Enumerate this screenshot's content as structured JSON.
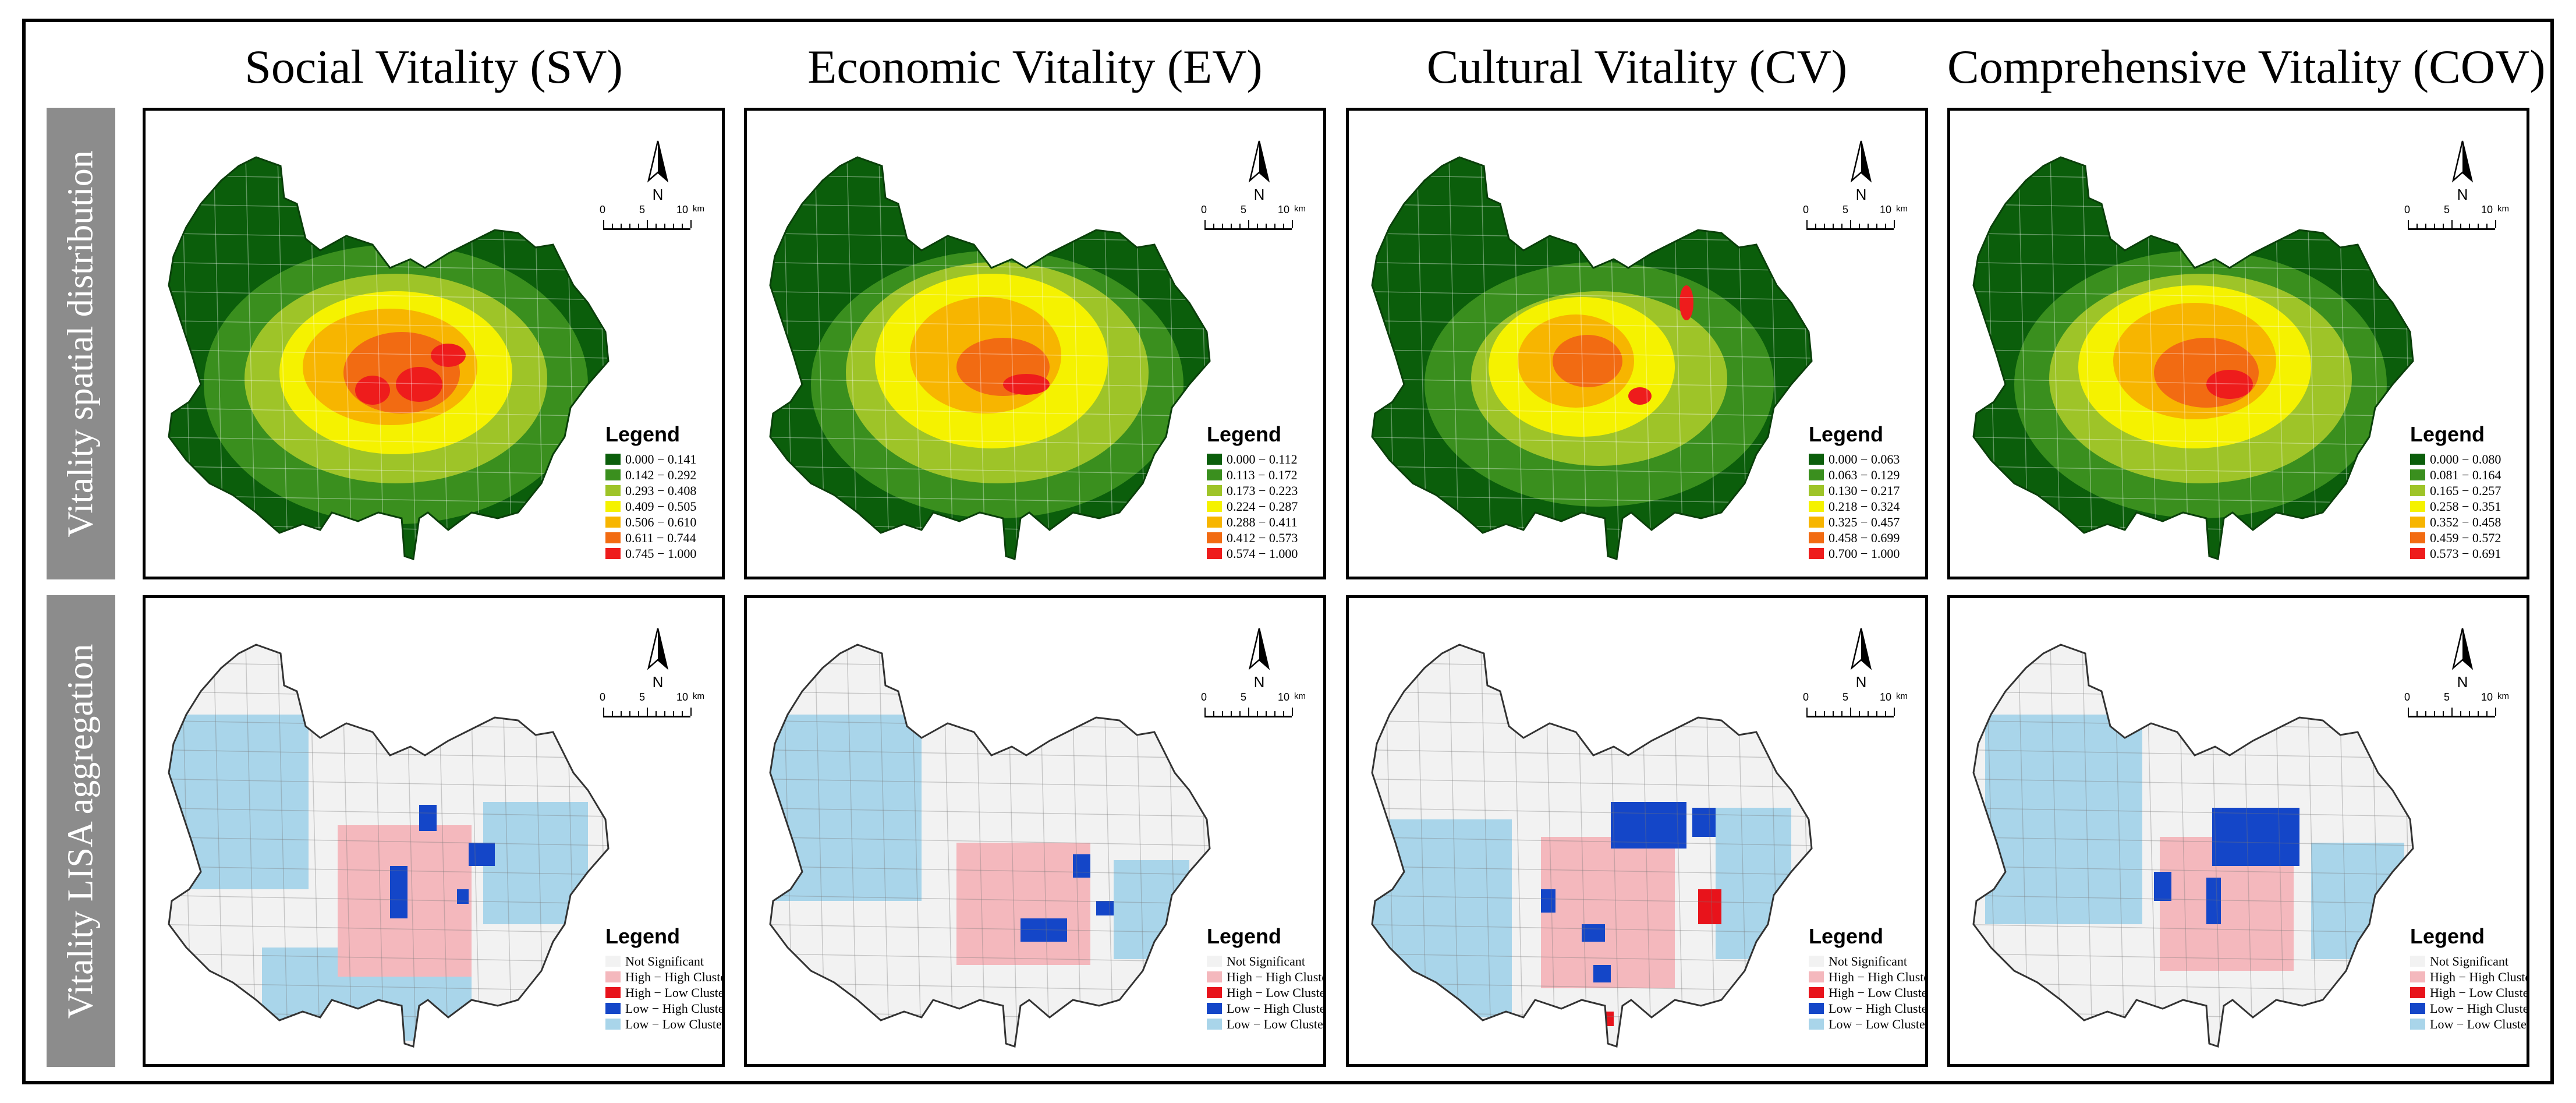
{
  "columns": [
    {
      "title": "Social Vitality (SV)"
    },
    {
      "title": "Economic Vitality (EV)"
    },
    {
      "title": "Cultural Vitality (CV)"
    },
    {
      "title": "Comprehensive Vitality (COV)"
    }
  ],
  "rows": [
    {
      "label": "Vitality spatial distribution"
    },
    {
      "label": "Vitality LISA aggregation"
    }
  ],
  "north_label": "N",
  "scale": {
    "labels": [
      "0",
      "5",
      "10"
    ],
    "unit": "km"
  },
  "legend_title": "Legend",
  "distribution_colors": [
    "#0b5e0b",
    "#3a8f1e",
    "#9ec428",
    "#f5f200",
    "#f7b500",
    "#f26b12",
    "#ee1c1c"
  ],
  "distribution_legends": [
    [
      "0.000 − 0.141",
      "0.142 − 0.292",
      "0.293 − 0.408",
      "0.409 − 0.505",
      "0.506 − 0.610",
      "0.611 − 0.744",
      "0.745 − 1.000"
    ],
    [
      "0.000 − 0.112",
      "0.113 − 0.172",
      "0.173 − 0.223",
      "0.224 − 0.287",
      "0.288 − 0.411",
      "0.412 − 0.573",
      "0.574 − 1.000"
    ],
    [
      "0.000 − 0.063",
      "0.063 − 0.129",
      "0.130 − 0.217",
      "0.218 − 0.324",
      "0.325 − 0.457",
      "0.458 − 0.699",
      "0.700 − 1.000"
    ],
    [
      "0.000 − 0.080",
      "0.081 − 0.164",
      "0.165 − 0.257",
      "0.258 − 0.351",
      "0.352 − 0.458",
      "0.459 − 0.572",
      "0.573 − 0.691"
    ]
  ],
  "lisa_legend": [
    {
      "label": "Not Significant",
      "color": "#f2f2f2"
    },
    {
      "label": "High − High Cluster",
      "color": "#f4b8bd"
    },
    {
      "label": "High − Low Cluster",
      "color": "#e8131b"
    },
    {
      "label": "Low − High Cluster",
      "color": "#1446c8"
    },
    {
      "label": "Low − Low Cluster",
      "color": "#a9d5ea"
    }
  ]
}
